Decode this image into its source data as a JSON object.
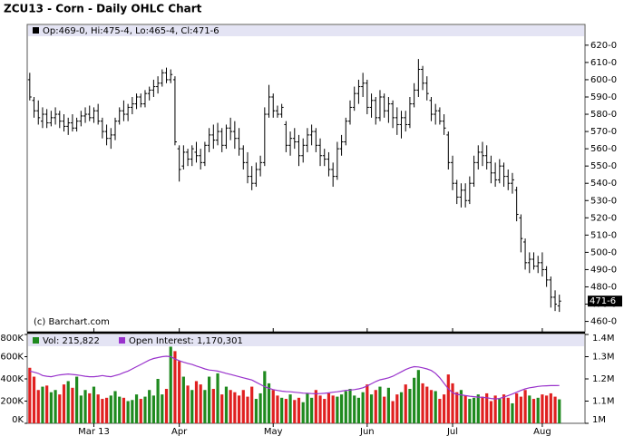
{
  "chart_data": [
    {
      "type": "ohlc",
      "title": "ZCU13 - Corn - Daily OHLC Chart",
      "header": "Op:469-0, Hi:475-4, Lo:465-4, Cl:471-6",
      "credit": "(c) Barchart.com",
      "color": "#000000",
      "xlim": [
        -0.6,
        130
      ],
      "ylim": [
        454,
        632
      ],
      "yticks": [
        {
          "value": 460,
          "label": "460-0"
        },
        {
          "value": 470,
          "label": "470-0"
        },
        {
          "value": 480,
          "label": "480-0"
        },
        {
          "value": 490,
          "label": "490-0"
        },
        {
          "value": 500,
          "label": "500-0"
        },
        {
          "value": 510,
          "label": "510-0"
        },
        {
          "value": 520,
          "label": "520-0"
        },
        {
          "value": 530,
          "label": "530-0"
        },
        {
          "value": 540,
          "label": "540-0"
        },
        {
          "value": 550,
          "label": "550-0"
        },
        {
          "value": 560,
          "label": "560-0"
        },
        {
          "value": 570,
          "label": "570-0"
        },
        {
          "value": 580,
          "label": "580-0"
        },
        {
          "value": 590,
          "label": "590-0"
        },
        {
          "value": 600,
          "label": "600-0"
        },
        {
          "value": 610,
          "label": "610-0"
        },
        {
          "value": 620,
          "label": "620-0"
        }
      ],
      "last": {
        "value": 471.75,
        "label": "471-6"
      },
      "ohlc": [
        [
          600,
          604,
          588,
          590
        ],
        [
          588,
          590,
          578,
          582
        ],
        [
          582,
          588,
          574,
          578
        ],
        [
          576,
          584,
          572,
          580
        ],
        [
          580,
          583,
          572,
          575
        ],
        [
          575,
          582,
          573,
          578
        ],
        [
          578,
          584,
          574,
          580
        ],
        [
          580,
          582,
          572,
          576
        ],
        [
          576,
          580,
          570,
          573
        ],
        [
          573,
          578,
          568,
          575
        ],
        [
          575,
          580,
          570,
          572
        ],
        [
          572,
          578,
          570,
          576
        ],
        [
          576,
          582,
          573,
          579
        ],
        [
          579,
          584,
          575,
          580
        ],
        [
          580,
          585,
          576,
          578
        ],
        [
          578,
          584,
          575,
          582
        ],
        [
          582,
          586,
          574,
          576
        ],
        [
          576,
          578,
          566,
          570
        ],
        [
          570,
          574,
          562,
          566
        ],
        [
          566,
          572,
          560,
          568
        ],
        [
          568,
          578,
          565,
          576
        ],
        [
          576,
          584,
          574,
          582
        ],
        [
          582,
          588,
          576,
          580
        ],
        [
          580,
          586,
          576,
          584
        ],
        [
          584,
          590,
          580,
          586
        ],
        [
          586,
          592,
          583,
          590
        ],
        [
          590,
          592,
          584,
          586
        ],
        [
          586,
          594,
          584,
          592
        ],
        [
          592,
          596,
          588,
          594
        ],
        [
          594,
          600,
          590,
          596
        ],
        [
          596,
          602,
          592,
          598
        ],
        [
          598,
          606,
          596,
          604
        ],
        [
          604,
          607,
          598,
          600
        ],
        [
          600,
          606,
          598,
          603
        ],
        [
          600,
          602,
          562,
          564
        ],
        [
          560,
          562,
          541,
          548
        ],
        [
          550,
          562,
          548,
          558
        ],
        [
          558,
          560,
          550,
          554
        ],
        [
          554,
          562,
          550,
          560
        ],
        [
          558,
          564,
          552,
          556
        ],
        [
          556,
          560,
          548,
          552
        ],
        [
          552,
          564,
          550,
          562
        ],
        [
          562,
          572,
          558,
          568
        ],
        [
          568,
          574,
          560,
          565
        ],
        [
          565,
          575,
          562,
          570
        ],
        [
          570,
          572,
          558,
          562
        ],
        [
          562,
          574,
          560,
          572
        ],
        [
          572,
          578,
          565,
          570
        ],
        [
          570,
          576,
          560,
          566
        ],
        [
          566,
          572,
          556,
          560
        ],
        [
          560,
          562,
          548,
          552
        ],
        [
          552,
          558,
          540,
          544
        ],
        [
          544,
          550,
          536,
          540
        ],
        [
          540,
          552,
          538,
          548
        ],
        [
          548,
          556,
          544,
          552
        ],
        [
          552,
          584,
          550,
          580
        ],
        [
          580,
          597,
          578,
          590
        ],
        [
          590,
          592,
          578,
          582
        ],
        [
          582,
          585,
          578,
          580
        ],
        [
          580,
          586,
          578,
          584
        ],
        [
          574,
          576,
          558,
          562
        ],
        [
          562,
          570,
          556,
          566
        ],
        [
          566,
          572,
          560,
          564
        ],
        [
          564,
          568,
          550,
          556
        ],
        [
          556,
          566,
          552,
          562
        ],
        [
          562,
          572,
          558,
          568
        ],
        [
          568,
          574,
          562,
          570
        ],
        [
          570,
          572,
          558,
          562
        ],
        [
          562,
          566,
          550,
          556
        ],
        [
          556,
          560,
          550,
          554
        ],
        [
          554,
          558,
          544,
          548
        ],
        [
          548,
          552,
          538,
          544
        ],
        [
          544,
          564,
          542,
          560
        ],
        [
          560,
          568,
          556,
          564
        ],
        [
          564,
          578,
          562,
          576
        ],
        [
          576,
          588,
          574,
          584
        ],
        [
          584,
          596,
          582,
          592
        ],
        [
          592,
          600,
          586,
          596
        ],
        [
          596,
          604,
          590,
          598
        ],
        [
          598,
          600,
          580,
          584
        ],
        [
          584,
          592,
          578,
          588
        ],
        [
          588,
          590,
          574,
          578
        ],
        [
          578,
          594,
          576,
          590
        ],
        [
          590,
          592,
          578,
          582
        ],
        [
          582,
          590,
          575,
          586
        ],
        [
          586,
          588,
          572,
          578
        ],
        [
          578,
          584,
          568,
          574
        ],
        [
          574,
          582,
          566,
          578
        ],
        [
          578,
          582,
          570,
          574
        ],
        [
          574,
          590,
          572,
          586
        ],
        [
          586,
          598,
          584,
          594
        ],
        [
          594,
          612,
          590,
          606
        ],
        [
          606,
          608,
          594,
          598
        ],
        [
          598,
          602,
          588,
          592
        ],
        [
          588,
          590,
          576,
          580
        ],
        [
          580,
          586,
          574,
          582
        ],
        [
          582,
          584,
          574,
          576
        ],
        [
          576,
          580,
          568,
          572
        ],
        [
          568,
          570,
          548,
          552
        ],
        [
          552,
          556,
          536,
          540
        ],
        [
          540,
          542,
          528,
          532
        ],
        [
          532,
          540,
          526,
          536
        ],
        [
          536,
          540,
          526,
          530
        ],
        [
          530,
          544,
          528,
          540
        ],
        [
          540,
          556,
          538,
          552
        ],
        [
          552,
          562,
          548,
          558
        ],
        [
          558,
          564,
          550,
          556
        ],
        [
          556,
          562,
          548,
          552
        ],
        [
          552,
          556,
          540,
          546
        ],
        [
          546,
          552,
          538,
          542
        ],
        [
          542,
          554,
          540,
          550
        ],
        [
          550,
          552,
          538,
          544
        ],
        [
          544,
          548,
          536,
          540
        ],
        [
          540,
          546,
          534,
          542
        ],
        [
          536,
          538,
          518,
          522
        ],
        [
          520,
          522,
          500,
          508
        ],
        [
          506,
          508,
          490,
          494
        ],
        [
          494,
          500,
          488,
          496
        ],
        [
          496,
          500,
          490,
          492
        ],
        [
          492,
          498,
          488,
          494
        ],
        [
          494,
          500,
          486,
          490
        ],
        [
          490,
          492,
          480,
          484
        ],
        [
          484,
          486,
          468,
          474
        ],
        [
          474,
          478,
          466,
          470
        ],
        [
          469,
          475.5,
          465.5,
          471.75
        ]
      ]
    },
    {
      "type": "volume",
      "xlim": [
        -0.6,
        130
      ],
      "xticks": [
        {
          "value": 15,
          "label": "Mar 13"
        },
        {
          "value": 35,
          "label": "Apr"
        },
        {
          "value": 57,
          "label": "May"
        },
        {
          "value": 79,
          "label": "Jun"
        },
        {
          "value": 99,
          "label": "Jul"
        },
        {
          "value": 120,
          "label": "Aug"
        }
      ],
      "ylim": [
        0,
        800000
      ],
      "yticks": [
        {
          "value": 0,
          "label": "0K"
        },
        {
          "value": 200000,
          "label": "200K"
        },
        {
          "value": 400000,
          "label": "400K"
        },
        {
          "value": 600000,
          "label": "600K"
        },
        {
          "value": 800000,
          "label": "800K"
        }
      ],
      "y2lim": [
        1000000,
        1400000
      ],
      "y2ticks": [
        {
          "value": 1000000,
          "label": "1M"
        },
        {
          "value": 1100000,
          "label": "1.1M"
        },
        {
          "value": 1200000,
          "label": "1.2M"
        },
        {
          "value": 1300000,
          "label": "1.3M"
        },
        {
          "value": 1400000,
          "label": "1.4M"
        }
      ],
      "series": [
        {
          "name": "Vol: 215,822",
          "color": "#1f8a1f",
          "down_color": "#e02020",
          "values": [
            500000,
            420000,
            300000,
            330000,
            340000,
            280000,
            300000,
            260000,
            350000,
            380000,
            320000,
            420000,
            250000,
            300000,
            270000,
            330000,
            260000,
            220000,
            230000,
            250000,
            290000,
            240000,
            230000,
            200000,
            210000,
            260000,
            220000,
            240000,
            300000,
            250000,
            400000,
            260000,
            310000,
            690000,
            650000,
            560000,
            420000,
            340000,
            300000,
            380000,
            350000,
            300000,
            420000,
            310000,
            450000,
            260000,
            330000,
            300000,
            280000,
            250000,
            300000,
            240000,
            330000,
            220000,
            270000,
            470000,
            360000,
            300000,
            250000,
            230000,
            220000,
            260000,
            210000,
            230000,
            190000,
            270000,
            230000,
            300000,
            250000,
            220000,
            270000,
            250000,
            240000,
            260000,
            290000,
            310000,
            250000,
            230000,
            280000,
            350000,
            260000,
            300000,
            330000,
            240000,
            320000,
            200000,
            260000,
            280000,
            350000,
            310000,
            410000,
            480000,
            360000,
            330000,
            300000,
            290000,
            220000,
            260000,
            440000,
            360000,
            280000,
            300000,
            250000,
            220000,
            230000,
            260000,
            240000,
            270000,
            200000,
            250000,
            220000,
            260000,
            230000,
            180000,
            270000,
            240000,
            300000,
            250000,
            220000,
            230000,
            260000,
            250000,
            270000,
            240000,
            215822
          ]
        },
        {
          "name": "Open Interest: 1,170,301",
          "color": "#9933cc",
          "axis": "y2",
          "values": [
            1235000,
            1230000,
            1225000,
            1215000,
            1212000,
            1210000,
            1214000,
            1218000,
            1220000,
            1222000,
            1220000,
            1218000,
            1215000,
            1212000,
            1210000,
            1210000,
            1212000,
            1215000,
            1212000,
            1210000,
            1215000,
            1220000,
            1228000,
            1235000,
            1245000,
            1255000,
            1265000,
            1275000,
            1285000,
            1292000,
            1296000,
            1300000,
            1302000,
            1300000,
            1290000,
            1282000,
            1275000,
            1270000,
            1265000,
            1258000,
            1252000,
            1245000,
            1240000,
            1238000,
            1235000,
            1230000,
            1225000,
            1220000,
            1215000,
            1210000,
            1205000,
            1200000,
            1195000,
            1185000,
            1175000,
            1165000,
            1158000,
            1152000,
            1148000,
            1145000,
            1143000,
            1142000,
            1140000,
            1138000,
            1136000,
            1135000,
            1134000,
            1133000,
            1134000,
            1135000,
            1137000,
            1140000,
            1142000,
            1145000,
            1148000,
            1150000,
            1152000,
            1155000,
            1160000,
            1168000,
            1178000,
            1188000,
            1196000,
            1200000,
            1205000,
            1212000,
            1222000,
            1232000,
            1242000,
            1250000,
            1255000,
            1254000,
            1250000,
            1245000,
            1238000,
            1225000,
            1205000,
            1180000,
            1155000,
            1138000,
            1130000,
            1128000,
            1125000,
            1122000,
            1120000,
            1118000,
            1117000,
            1115000,
            1112000,
            1110000,
            1112000,
            1118000,
            1125000,
            1132000,
            1140000,
            1148000,
            1155000,
            1160000,
            1163000,
            1166000,
            1168000,
            1169000,
            1170000,
            1170000,
            1170301
          ]
        }
      ]
    }
  ]
}
